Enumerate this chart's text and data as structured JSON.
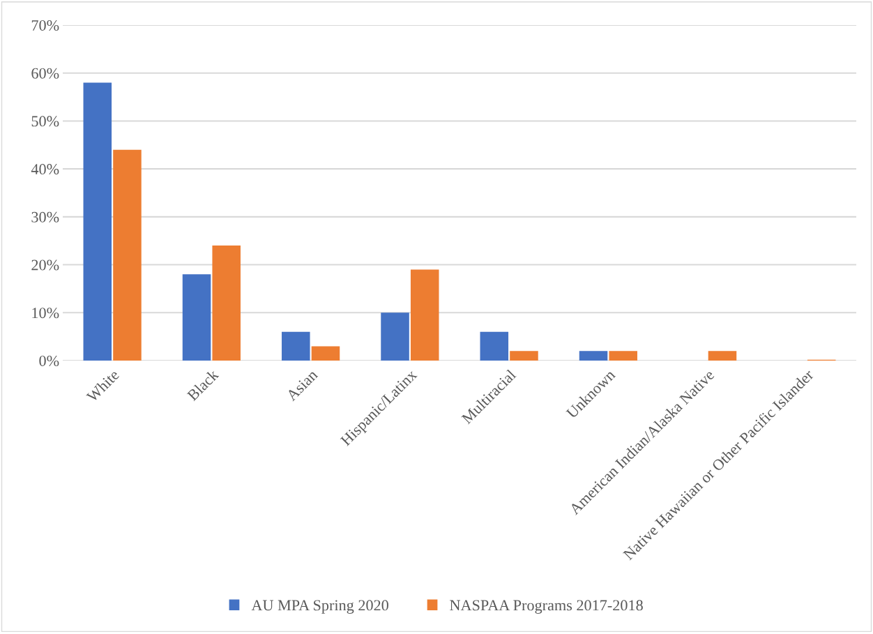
{
  "chart_data": {
    "type": "bar",
    "categories": [
      "White",
      "Black",
      "Asian",
      "Hispanic/Latinx",
      "Multiracial",
      "Unknown",
      "American Indian/Alaska Native",
      "Native Hawaiian or Other Pacific Islander"
    ],
    "series": [
      {
        "name": "AU MPA Spring 2020",
        "color": "#4472c4",
        "values": [
          58,
          18,
          6,
          10,
          6,
          2,
          0,
          0
        ]
      },
      {
        "name": "NASPAA Programs 2017-2018",
        "color": "#ed7d31",
        "values": [
          44,
          24,
          3,
          19,
          2,
          2,
          2,
          0.2
        ]
      }
    ],
    "ylim": [
      0,
      70
    ],
    "yticks": [
      {
        "value": 0,
        "label": "0%"
      },
      {
        "value": 10,
        "label": "10%"
      },
      {
        "value": 20,
        "label": "20%"
      },
      {
        "value": 30,
        "label": "30%"
      },
      {
        "value": 40,
        "label": "40%"
      },
      {
        "value": 50,
        "label": "50%"
      },
      {
        "value": 60,
        "label": "60%"
      },
      {
        "value": 70,
        "label": "70%"
      }
    ],
    "grid": "y",
    "legend": "bottom"
  }
}
